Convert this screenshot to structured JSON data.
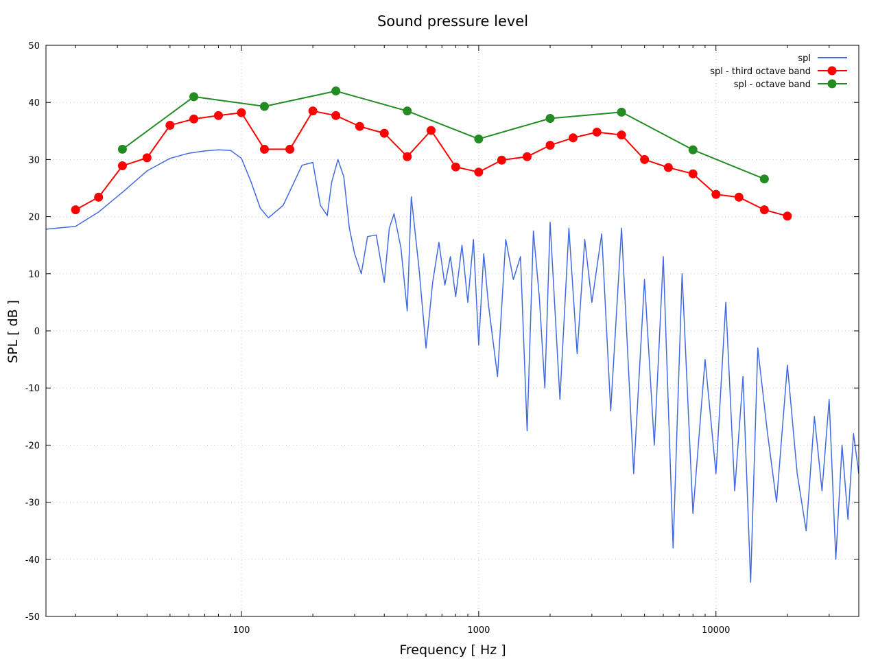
{
  "chart_data": {
    "type": "line",
    "title": "Sound pressure level",
    "xlabel": "Frequency [ Hz ]",
    "ylabel": "SPL [ dB ]",
    "xscale": "log",
    "xlim": [
      15,
      40000
    ],
    "ylim": [
      -50,
      50
    ],
    "grid": true,
    "legend_position": "top-right",
    "x_ticks": [
      {
        "value": 100,
        "label": "100"
      },
      {
        "value": 1000,
        "label": "1000"
      },
      {
        "value": 10000,
        "label": "10000"
      }
    ],
    "y_ticks": [
      {
        "value": 50,
        "label": "50"
      },
      {
        "value": 40,
        "label": "40"
      },
      {
        "value": 30,
        "label": "30"
      },
      {
        "value": 20,
        "label": "20"
      },
      {
        "value": 10,
        "label": "10"
      },
      {
        "value": 0,
        "label": "0"
      },
      {
        "value": -10,
        "label": "-10"
      },
      {
        "value": -20,
        "label": "-20"
      },
      {
        "value": -30,
        "label": "-30"
      },
      {
        "value": -40,
        "label": "-40"
      },
      {
        "value": -50,
        "label": "-50"
      }
    ],
    "series": [
      {
        "name": "spl",
        "color": "#4169e1",
        "marker": "none",
        "x": [
          15,
          20,
          25,
          32,
          40,
          50,
          60,
          70,
          80,
          90,
          100,
          110,
          120,
          130,
          150,
          180,
          200,
          215,
          230,
          240,
          255,
          270,
          285,
          300,
          320,
          340,
          370,
          400,
          420,
          440,
          470,
          500,
          520,
          560,
          600,
          640,
          680,
          720,
          760,
          800,
          850,
          900,
          950,
          1000,
          1050,
          1100,
          1200,
          1300,
          1400,
          1500,
          1600,
          1700,
          1800,
          1900,
          2000,
          2200,
          2400,
          2600,
          2800,
          3000,
          3300,
          3600,
          4000,
          4500,
          5000,
          5500,
          6000,
          6600,
          7200,
          8000,
          9000,
          10000,
          11000,
          12000,
          13000,
          14000,
          15000,
          16500,
          18000,
          20000,
          22000,
          24000,
          26000,
          28000,
          30000,
          32000,
          34000,
          36000,
          38000,
          40000
        ],
        "y": [
          17.8,
          18.3,
          20.8,
          24.5,
          28,
          30.2,
          31.1,
          31.5,
          31.7,
          31.6,
          30.2,
          26,
          21.5,
          19.8,
          22,
          29,
          29.5,
          22,
          20.2,
          26,
          30,
          27,
          18,
          13.5,
          10,
          16.5,
          16.8,
          8.5,
          18,
          20.5,
          14.5,
          3.5,
          23.5,
          11,
          -3,
          8.5,
          15.5,
          8,
          13,
          6,
          15,
          5,
          16,
          -2.5,
          13.5,
          4.5,
          -8,
          16,
          9,
          13,
          -17.5,
          17.5,
          6,
          -10,
          19,
          -12,
          18,
          -4,
          16,
          5,
          17,
          -14,
          18,
          -25,
          9,
          -20,
          13,
          -38,
          10,
          -32,
          -5,
          -25,
          5,
          -28,
          -8,
          -44,
          -3,
          -18,
          -30,
          -6,
          -25,
          -35,
          -15,
          -28,
          -12,
          -40,
          -20,
          -33,
          -18,
          -25
        ]
      },
      {
        "name": "spl - third octave band",
        "color": "#ff0000",
        "marker": "circle",
        "x": [
          20,
          25,
          31.5,
          40,
          50,
          63,
          80,
          100,
          125,
          160,
          200,
          250,
          315,
          400,
          500,
          630,
          800,
          1000,
          1250,
          1600,
          2000,
          2500,
          3150,
          4000,
          5000,
          6300,
          8000,
          10000,
          12500,
          16000,
          20000
        ],
        "y": [
          21.2,
          23.4,
          28.9,
          30.3,
          36,
          37.1,
          37.7,
          38.2,
          31.8,
          31.8,
          38.5,
          37.7,
          35.8,
          34.6,
          30.5,
          35.1,
          28.7,
          27.8,
          29.9,
          30.5,
          32.5,
          33.8,
          34.8,
          34.3,
          30,
          28.6,
          27.5,
          23.9,
          23.4,
          21.2,
          20.1
        ]
      },
      {
        "name": "spl - octave band",
        "color": "#228b22",
        "marker": "circle",
        "x": [
          31.5,
          63,
          125,
          250,
          500,
          1000,
          2000,
          4000,
          8000,
          16000
        ],
        "y": [
          31.8,
          41,
          39.3,
          42,
          38.5,
          33.6,
          37.2,
          38.3,
          31.7,
          26.6
        ]
      }
    ]
  }
}
